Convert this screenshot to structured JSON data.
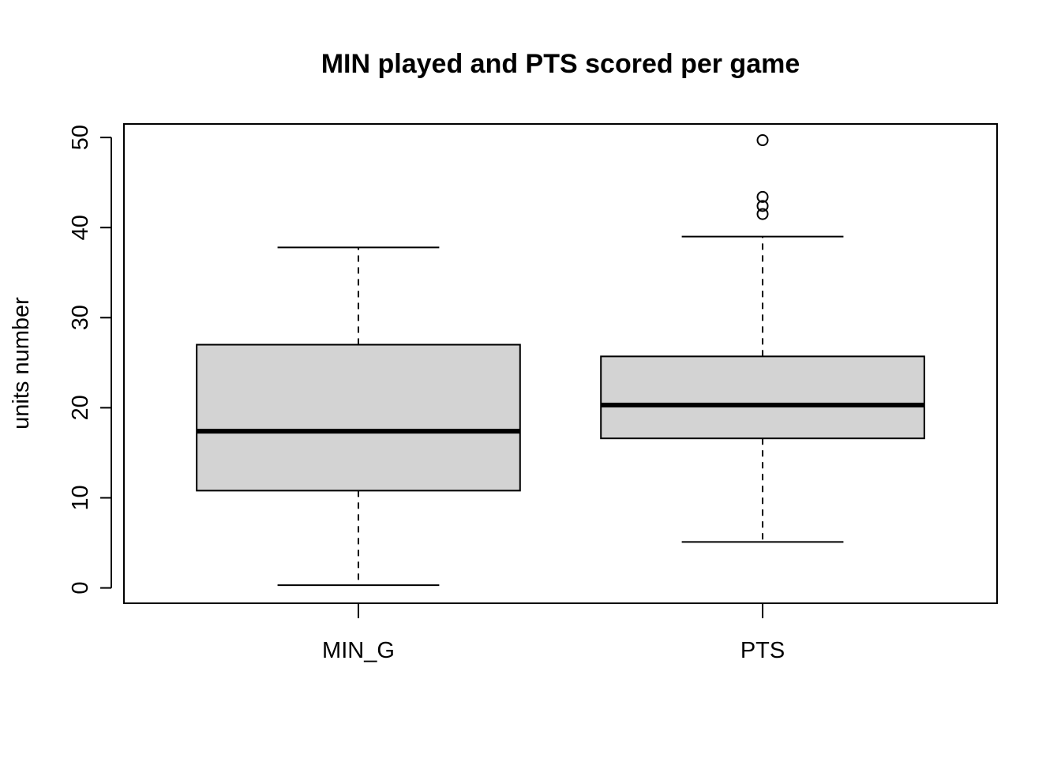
{
  "chart_data": {
    "type": "boxplot",
    "title": "MIN played and PTS scored per game",
    "xlabel": "",
    "ylabel": "units number",
    "ylim": [
      -1.7,
      51.5
    ],
    "yticks": [
      0,
      10,
      20,
      30,
      40,
      50
    ],
    "ytick_labels": [
      "0",
      "10",
      "20",
      "30",
      "40",
      "50"
    ],
    "categories": [
      "MIN_G",
      "PTS"
    ],
    "grid": false,
    "box_fill": "#d3d3d3",
    "line_color": "#000000",
    "boxes": [
      {
        "name": "MIN_G",
        "whisker_low": 0.3,
        "q1": 10.8,
        "median": 17.4,
        "q3": 27.0,
        "whisker_high": 37.8,
        "outliers": []
      },
      {
        "name": "PTS",
        "whisker_low": 5.1,
        "q1": 16.6,
        "median": 20.3,
        "q3": 25.7,
        "whisker_high": 39.0,
        "outliers": [
          49.7,
          43.4,
          42.4,
          41.5
        ]
      }
    ]
  }
}
